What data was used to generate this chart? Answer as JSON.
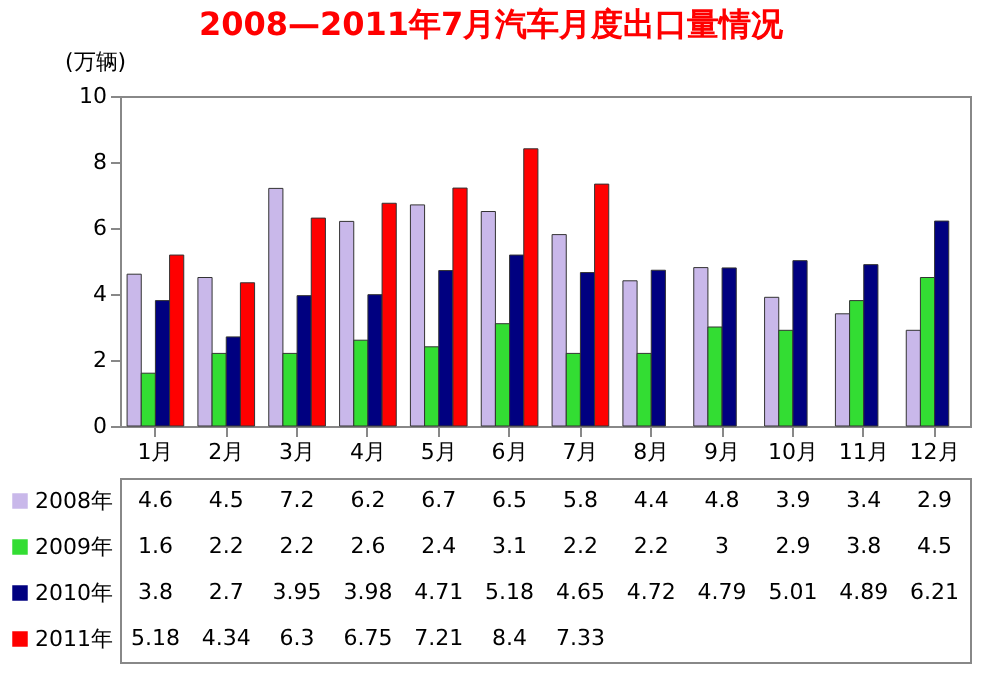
{
  "chart_data": {
    "type": "bar",
    "title": "2008—2011年7月汽车月度出口量情况",
    "ylabel": "(万辆)",
    "categories": [
      "1月",
      "2月",
      "3月",
      "4月",
      "5月",
      "6月",
      "7月",
      "8月",
      "9月",
      "10月",
      "11月",
      "12月"
    ],
    "series": [
      {
        "name": "2008年",
        "color": "#c9b8ea",
        "values": [
          4.6,
          4.5,
          7.2,
          6.2,
          6.7,
          6.5,
          5.8,
          4.4,
          4.8,
          3.9,
          3.4,
          2.9
        ]
      },
      {
        "name": "2009年",
        "color": "#33dd33",
        "values": [
          1.6,
          2.2,
          2.2,
          2.6,
          2.4,
          3.1,
          2.2,
          2.2,
          3,
          2.9,
          3.8,
          4.5
        ]
      },
      {
        "name": "2010年",
        "color": "#000080",
        "values": [
          3.8,
          2.7,
          3.95,
          3.98,
          4.71,
          5.18,
          4.65,
          4.72,
          4.79,
          5.01,
          4.89,
          6.21
        ]
      },
      {
        "name": "2011年",
        "color": "#ff0000",
        "values": [
          5.18,
          4.34,
          6.3,
          6.75,
          7.21,
          8.4,
          7.33,
          null,
          null,
          null,
          null,
          null
        ]
      }
    ],
    "ylim": [
      0,
      10
    ],
    "yticks": [
      0,
      2,
      4,
      6,
      8,
      10
    ],
    "grid": false,
    "legend": "bottom",
    "data_labels": true
  }
}
